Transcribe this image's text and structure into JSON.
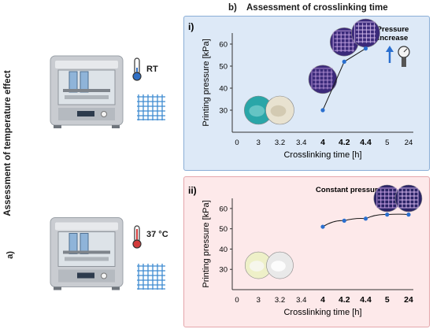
{
  "labels": {
    "part_a": "a)",
    "part_a_title": "Assessment of temperature effect",
    "part_b": "b)",
    "part_b_title": "Assessment of crosslinking time",
    "rt": "RT",
    "temp37": "37 °C"
  },
  "panel_i": {
    "roman": "i)",
    "annotation_line1": "Pressure",
    "annotation_line2": "increase"
  },
  "panel_ii": {
    "roman": "ii)",
    "annotation": "Constant pressure"
  },
  "colors": {
    "panel_i_bg": "#dde9f7",
    "panel_ii_bg": "#fde9ea",
    "line": "#1a1a1a",
    "marker": "#2a6fcf",
    "thermo_cold": "#2f6fc4",
    "thermo_hot": "#d23a3a"
  },
  "chart_data": [
    {
      "type": "line",
      "ylabel": "Printing pressure [kPa]",
      "xlabel": "Crosslinking time [h]",
      "categories": [
        "0",
        "3",
        "3.2",
        "3.4",
        "4",
        "4.2",
        "4.4",
        "5",
        "24"
      ],
      "bold_categories": [
        "4",
        "4.2",
        "4.4"
      ],
      "yticks": [
        "30",
        "40",
        "50",
        "60"
      ],
      "ylim": [
        20,
        65
      ],
      "series": [
        {
          "x": [
            "4",
            "4.2",
            "4.4"
          ],
          "y": [
            30,
            52,
            58
          ]
        }
      ],
      "sample_images": [
        "3",
        "3.2",
        "4",
        "4.2",
        "4.4"
      ]
    },
    {
      "type": "line",
      "ylabel": "Printing pressure [kPa]",
      "xlabel": "Crosslinking time [h]",
      "categories": [
        "0",
        "3",
        "3.2",
        "3.4",
        "4",
        "4.2",
        "4.4",
        "5",
        "24"
      ],
      "bold_categories": [
        "4",
        "4.2",
        "4.4",
        "5",
        "24"
      ],
      "yticks": [
        "30",
        "40",
        "50",
        "60"
      ],
      "ylim": [
        20,
        65
      ],
      "series": [
        {
          "x": [
            "4",
            "4.2",
            "4.4",
            "5",
            "24"
          ],
          "y": [
            51,
            54,
            55,
            57,
            57
          ]
        }
      ],
      "sample_images": [
        "3",
        "3.2",
        "5",
        "24"
      ]
    }
  ]
}
